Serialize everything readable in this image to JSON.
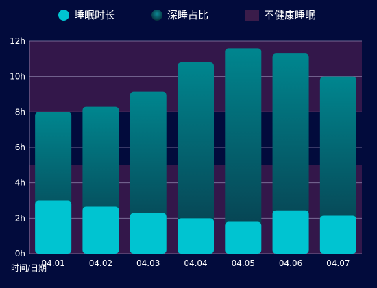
{
  "legend": [
    {
      "label": "睡眠时长",
      "shape": "circle",
      "color": "#00c4d1"
    },
    {
      "label": "深睡占比",
      "shape": "circle",
      "color": "#0e5e6a"
    },
    {
      "label": "不健康睡眠",
      "shape": "rect",
      "color": "#3a1c4a"
    }
  ],
  "chart_data": {
    "type": "bar",
    "xlabel": "时间/日期",
    "ylabel": "",
    "categories": [
      "04.01",
      "04.02",
      "04.03",
      "04.04",
      "04.05",
      "04.06",
      "04.07"
    ],
    "series": [
      {
        "name": "睡眠时长",
        "values": [
          8.0,
          8.3,
          9.15,
          10.8,
          11.6,
          11.3,
          10.0
        ]
      },
      {
        "name": "深睡占比",
        "values": [
          3.0,
          2.65,
          2.3,
          2.0,
          1.8,
          2.45,
          2.15
        ]
      }
    ],
    "unhealthy_ranges": [
      [
        0,
        5
      ],
      [
        8,
        12
      ]
    ],
    "y_ticks": [
      "0h",
      "2h",
      "4h",
      "6h",
      "8h",
      "10h",
      "12h"
    ],
    "ylim": [
      0,
      12
    ],
    "colors": {
      "background": "#020b3c",
      "unhealthy_band": "#33174a",
      "bar_top": "#00868f",
      "bar_bottom": "#083a4a",
      "deep_sleep": "#00c4d1",
      "gridline": "#8a7fa8"
    }
  }
}
